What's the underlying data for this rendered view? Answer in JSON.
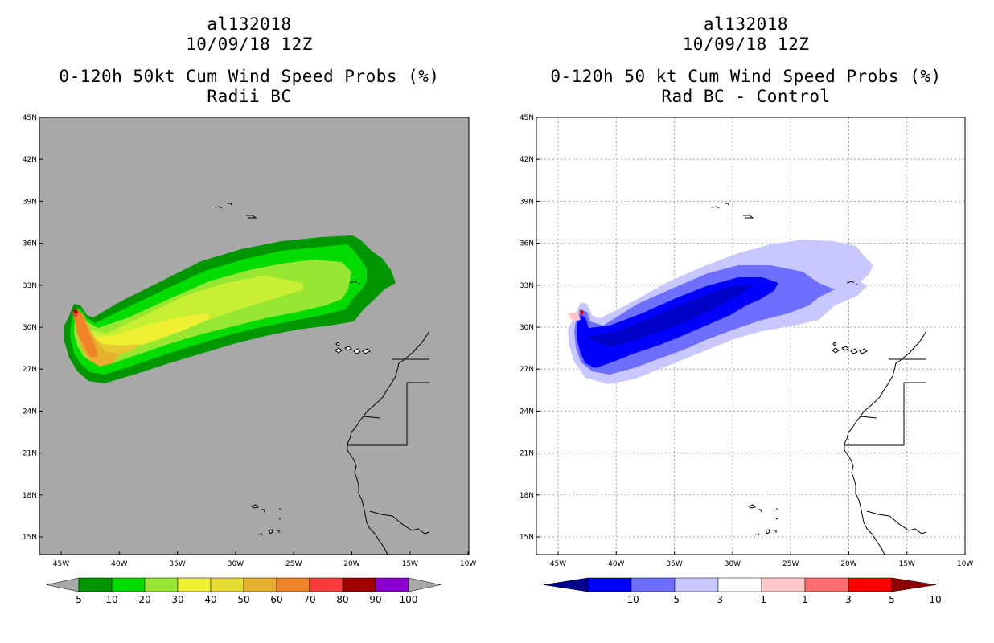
{
  "left_panel": {
    "storm_id": "al132018",
    "datetime": "10/09/18 12Z",
    "title": "0-120h 50kt Cum Wind Speed Probs (%)",
    "subtitle": "Radii BC",
    "background_color": "#a8a8a8",
    "colorbar": {
      "labels": [
        "5",
        "10",
        "20",
        "30",
        "40",
        "50",
        "60",
        "70",
        "80",
        "90",
        "100"
      ],
      "colors": [
        "#009600",
        "#00dc00",
        "#96e632",
        "#f0f032",
        "#e6dc32",
        "#e6af2d",
        "#f08228",
        "#fa3c3c",
        "#a00000",
        "#8c00d2"
      ]
    }
  },
  "right_panel": {
    "storm_id": "al132018",
    "datetime": "10/09/18 12Z",
    "title": "0-120h 50 kt Cum Wind Speed Probs (%)",
    "subtitle": "Rad BC - Control",
    "background_color": "#ffffff",
    "colorbar": {
      "labels": [
        "-10",
        "-5",
        "-3",
        "-1",
        "1",
        "3",
        "5",
        "10"
      ],
      "colors": [
        "#00008c",
        "#0000ff",
        "#6e6eff",
        "#c8c8ff",
        "#ffffff",
        "#ffc8c8",
        "#ff6e6e",
        "#ff0000",
        "#8c0000"
      ]
    }
  },
  "map": {
    "lat_labels": [
      "45N",
      "42N",
      "39N",
      "36N",
      "33N",
      "30N",
      "27N",
      "24N",
      "21N",
      "18N",
      "15N"
    ],
    "lon_labels": [
      "45W",
      "40W",
      "35W",
      "30W",
      "25W",
      "20W",
      "15W",
      "10W"
    ]
  }
}
